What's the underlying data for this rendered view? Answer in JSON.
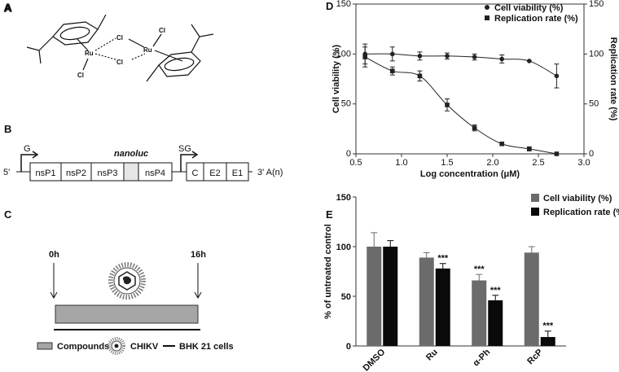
{
  "panel_a": {
    "label": "A",
    "atoms": [
      "Cl",
      "Cl",
      "Cl",
      "Cl",
      "Ru",
      "Ru"
    ]
  },
  "panel_b": {
    "label": "B",
    "promoters": [
      "G",
      "SG"
    ],
    "reporter": "nanoluc",
    "five_prime": "5'",
    "three_prime": "3' A(n)",
    "genes": [
      "nsP1",
      "nsP2",
      "nsP3",
      "nsP4",
      "C",
      "E2",
      "E1"
    ]
  },
  "panel_c": {
    "label": "C",
    "times": [
      "0h",
      "16h"
    ],
    "legend": [
      "Compounds",
      "CHIKV",
      "BHK 21 cells"
    ]
  },
  "chart_data": [
    {
      "type": "line",
      "panel_label": "D",
      "x": [
        0.6,
        0.9,
        1.2,
        1.5,
        1.8,
        2.1,
        2.4,
        2.7
      ],
      "xlabel": "Log concentration (μM)",
      "ylabel": "Cell viability (%)",
      "y2label": "Replication rate (%)",
      "xlim": [
        0.5,
        3.0
      ],
      "xticks": [
        0.5,
        {
          "value": 1,
          "label": "1.0"
        },
        1.5,
        {
          "value": 2,
          "label": "2.0"
        },
        2.5,
        {
          "value": 3,
          "label": "3.0"
        }
      ],
      "ylim": [
        0,
        150
      ],
      "yticks": [
        0,
        50,
        100,
        150
      ],
      "y2lim": [
        0,
        150
      ],
      "y2ticks": [
        0,
        50,
        100,
        150
      ],
      "series": [
        {
          "name": "Cell viability (%)",
          "color": "#222222",
          "marker": "circle",
          "values": [
            100,
            100,
            98,
            98,
            97,
            95,
            93,
            78
          ],
          "errors": [
            10,
            7,
            4,
            3,
            3,
            4,
            0,
            12
          ]
        },
        {
          "name": "Replication rate (%)",
          "color": "#222222",
          "marker": "square",
          "axis": "y2",
          "values": [
            97,
            83,
            78,
            49,
            26,
            10,
            5,
            0
          ],
          "errors": [
            10,
            4,
            5,
            6,
            3,
            1,
            2,
            0
          ]
        }
      ]
    },
    {
      "type": "bar",
      "panel_label": "E",
      "categories": [
        "DMSO",
        "Ru",
        "α-Ph",
        "RcP"
      ],
      "ylabel": "% of untreated control",
      "ylim": [
        0,
        150
      ],
      "yticks": [
        0,
        50,
        100,
        150
      ],
      "series": [
        {
          "name": "Cell viability (%)",
          "color": "#6b6b6b",
          "values": [
            100,
            89,
            66,
            94
          ],
          "errors": [
            14,
            5,
            6,
            6
          ],
          "significance": [
            null,
            null,
            "***",
            null
          ]
        },
        {
          "name": "Replication rate (%)",
          "color": "#0a0a0a",
          "values": [
            100,
            78,
            46,
            9
          ],
          "errors": [
            6,
            5,
            5,
            6
          ],
          "significance": [
            null,
            "***",
            "***",
            "***"
          ]
        }
      ]
    }
  ]
}
